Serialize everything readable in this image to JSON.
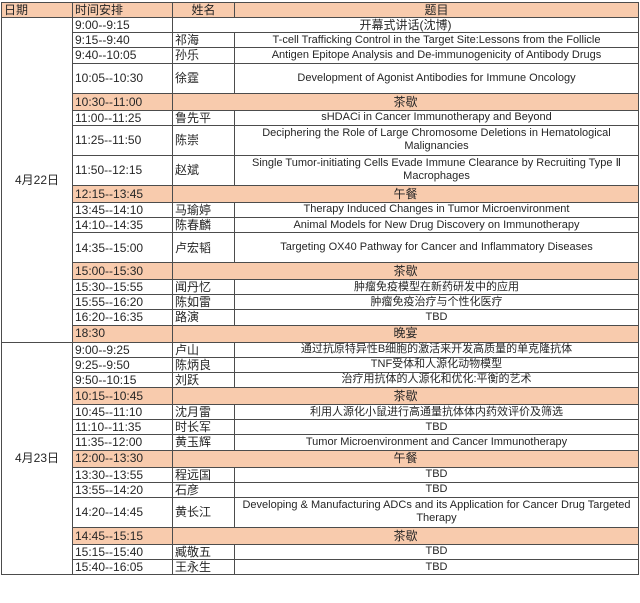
{
  "colors": {
    "header_bg": "#f8cbad",
    "special_row_bg": "#f8cbad",
    "border": "#4c4c4c",
    "text": "#262626",
    "row_bg": "#ffffff"
  },
  "table": {
    "headers": {
      "date": "日期",
      "time": "时间安排",
      "name": "姓名",
      "title": "题目"
    },
    "days": [
      {
        "date": "4月22日",
        "rows": [
          {
            "time": "9:00--9:15",
            "title": "开幕式讲话(沈博)"
          },
          {
            "time": "9:15--9:40",
            "name": "祁海",
            "title": "T-cell Trafficking Control in the Target Site:Lessons from the Follicle"
          },
          {
            "time": "9:40--10:05",
            "name": "孙乐",
            "title": "Antigen Epitope Analysis and De-immunogenicity of Antibody Drugs"
          },
          {
            "time": "10:05--10:30",
            "name": "徐霆",
            "title": "Development of Agonist Antibodies for Immune Oncology"
          },
          {
            "time": "10:30--11:00",
            "special": "茶歇"
          },
          {
            "time": "11:00--11:25",
            "name": "鲁先平",
            "title": "sHDACi in Cancer Immunotherapy and Beyond"
          },
          {
            "time": "11:25--11:50",
            "name": "陈崇",
            "title": "Deciphering the Role of Large Chromosome Deletions in Hematological Malignancies"
          },
          {
            "time": "11:50--12:15",
            "name": "赵斌",
            "title": "Single Tumor-initiating Cells Evade Immune Clearance by Recruiting Type Ⅱ Macrophages"
          },
          {
            "time": "12:15--13:45",
            "special": "午餐"
          },
          {
            "time": "13:45--14:10",
            "name": "马瑜婷",
            "title": "Therapy Induced Changes in Tumor Microenvironment"
          },
          {
            "time": "14:10--14:35",
            "name": "陈春麟",
            "title": "Animal Models for New Drug Discovery on Immunotherapy"
          },
          {
            "time": "14:35--15:00",
            "name": "卢宏韬",
            "title": "Targeting OX40 Pathway for Cancer and Inflammatory Diseases"
          },
          {
            "time": "15:00--15:30",
            "special": "茶歇"
          },
          {
            "time": "15:30--15:55",
            "name": "闻丹忆",
            "title": "肿瘤免疫模型在新药研发中的应用"
          },
          {
            "time": "15:55--16:20",
            "name": "陈如雷",
            "title": "肿瘤免疫治疗与个性化医疗"
          },
          {
            "time": "16:20--16:35",
            "name": "路演",
            "title": "TBD"
          },
          {
            "time": "18:30",
            "special": "晚宴"
          }
        ]
      },
      {
        "date": "4月23日",
        "rows": [
          {
            "time": "9:00--9:25",
            "name": "卢山",
            "title": "通过抗原特异性B细胞的激活来开发高质量的单克隆抗体"
          },
          {
            "time": "9:25--9:50",
            "name": "陈炳良",
            "title": "TNF受体和人源化动物模型"
          },
          {
            "time": "9:50--10:15",
            "name": "刘跃",
            "title": "治疗用抗体的人源化和优化:平衡的艺术"
          },
          {
            "time": "10:15--10:45",
            "special": "茶歇"
          },
          {
            "time": "10:45--11:10",
            "name": "沈月雷",
            "title": "利用人源化小鼠进行高通量抗体体内药效评价及筛选"
          },
          {
            "time": "11:10--11:35",
            "name": "时长军",
            "title": "TBD"
          },
          {
            "time": "11:35--12:00",
            "name": "黄玉辉",
            "title": "Tumor Microenvironment and Cancer Immunotherapy"
          },
          {
            "time": "12:00--13:30",
            "special": "午餐"
          },
          {
            "time": "13:30--13:55",
            "name": "程远国",
            "title": "TBD"
          },
          {
            "time": "13:55--14:20",
            "name": "石彦",
            "title": "TBD"
          },
          {
            "time": "14:20--14:45",
            "name": "黄长江",
            "title": "Developing & Manufacturing ADCs and its Application for Cancer Drug Targeted Therapy"
          },
          {
            "time": "14:45--15:15",
            "special": "茶歇"
          },
          {
            "time": "15:15--15:40",
            "name": "臧敬五",
            "title": "TBD"
          },
          {
            "time": "15:40--16:05",
            "name": "王永生",
            "title": "TBD"
          }
        ]
      }
    ]
  }
}
